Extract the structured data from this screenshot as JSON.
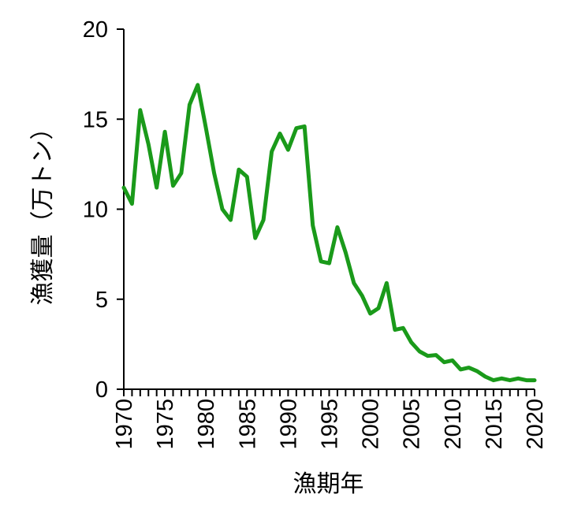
{
  "chart_data": {
    "type": "line",
    "xlabel": "漁期年",
    "ylabel": "漁獲量（万トン）",
    "xlim": [
      1970,
      2020
    ],
    "ylim": [
      0,
      20
    ],
    "yticks": [
      0,
      5,
      10,
      15,
      20
    ],
    "xticks": [
      1970,
      1975,
      1980,
      1985,
      1990,
      1995,
      2000,
      2005,
      2010,
      2015,
      2020
    ],
    "grid": false,
    "line_color": "#1a9a1a",
    "series": [
      {
        "x": [
          1970,
          1971,
          1972,
          1973,
          1974,
          1975,
          1976,
          1977,
          1978,
          1979,
          1980,
          1981,
          1982,
          1983,
          1984,
          1985,
          1986,
          1987,
          1988,
          1989,
          1990,
          1991,
          1992,
          1993,
          1994,
          1995,
          1996,
          1997,
          1998,
          1999,
          2000,
          2001,
          2002,
          2003,
          2004,
          2005,
          2006,
          2007,
          2008,
          2009,
          2010,
          2011,
          2012,
          2013,
          2014,
          2015,
          2016,
          2017,
          2018,
          2019,
          2020
        ],
        "values": [
          11.2,
          10.3,
          15.5,
          13.6,
          11.2,
          14.3,
          11.3,
          12.0,
          15.8,
          16.9,
          14.5,
          12.0,
          10.0,
          9.4,
          12.2,
          11.8,
          8.4,
          9.4,
          13.2,
          14.2,
          13.3,
          14.5,
          14.6,
          9.1,
          7.1,
          7.0,
          9.0,
          7.6,
          5.9,
          5.2,
          4.2,
          4.5,
          5.9,
          3.3,
          3.4,
          2.6,
          2.1,
          1.85,
          1.9,
          1.5,
          1.6,
          1.1,
          1.2,
          1.0,
          0.7,
          0.5,
          0.6,
          0.5,
          0.6,
          0.5,
          0.5
        ]
      }
    ]
  }
}
